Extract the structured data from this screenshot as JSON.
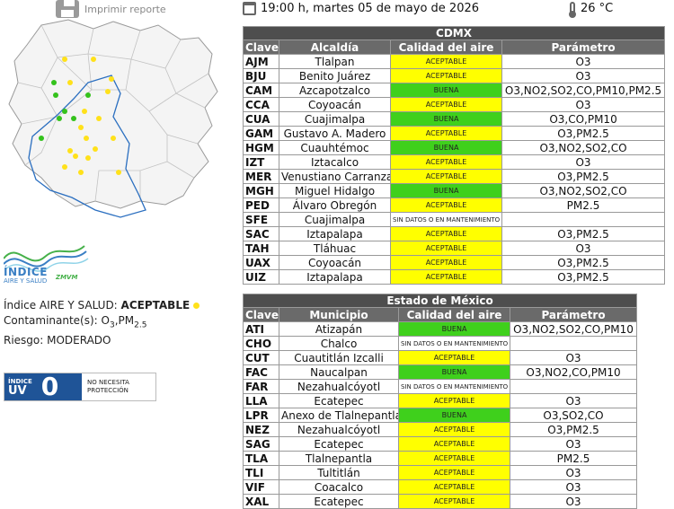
{
  "header": {
    "print_label": "Imprimir reporte",
    "datetime": "19:00 h, martes 05 de mayo de 2026",
    "temperature": "26 °C"
  },
  "logo": {
    "title": "ÍNDICE",
    "subtitle": "AIRE Y SALUD",
    "region": "ZMVM"
  },
  "info": {
    "index_label": "Índice AIRE Y SALUD: ",
    "index_value": "ACEPTABLE",
    "pollutant_label": "Contaminante(s): ",
    "pollutant_o": "O",
    "pollutant_o_sub": "3",
    "pollutant_pm": ",PM",
    "pollutant_pm_sub": "2.5",
    "risk_label": "Riesgo: ",
    "risk_value": "MODERADO",
    "status_color": "#ffe11a"
  },
  "uv": {
    "small_label": "ÍNDICE",
    "big_label": "UV",
    "value": "0",
    "message_line1": "NO NECESITA",
    "message_line2": "PROTECCIÓN"
  },
  "colors": {
    "aceptable": "#ffff00",
    "buena": "#3fd01c",
    "header_dark": "#4e4e4e",
    "header_mid": "#6a6a6a",
    "uv_blue": "#1f5497"
  },
  "cdmx": {
    "title": "CDMX",
    "headers": [
      "Clave",
      "Alcaldía",
      "Calidad del aire",
      "Parámetro"
    ],
    "rows": [
      {
        "clave": "AJM",
        "name": "Tlalpan",
        "quality": "ACEPTABLE",
        "status": "aceptable",
        "param": "O3"
      },
      {
        "clave": "BJU",
        "name": "Benito Juárez",
        "quality": "ACEPTABLE",
        "status": "aceptable",
        "param": "O3"
      },
      {
        "clave": "CAM",
        "name": "Azcapotzalco",
        "quality": "BUENA",
        "status": "buena",
        "param": "O3,NO2,SO2,CO,PM10,PM2.5"
      },
      {
        "clave": "CCA",
        "name": "Coyoacán",
        "quality": "ACEPTABLE",
        "status": "aceptable",
        "param": "O3"
      },
      {
        "clave": "CUA",
        "name": "Cuajimalpa",
        "quality": "BUENA",
        "status": "buena",
        "param": "O3,CO,PM10"
      },
      {
        "clave": "GAM",
        "name": "Gustavo A. Madero",
        "quality": "ACEPTABLE",
        "status": "aceptable",
        "param": "O3,PM2.5"
      },
      {
        "clave": "HGM",
        "name": "Cuauhtémoc",
        "quality": "BUENA",
        "status": "buena",
        "param": "O3,NO2,SO2,CO"
      },
      {
        "clave": "IZT",
        "name": "Iztacalco",
        "quality": "ACEPTABLE",
        "status": "aceptable",
        "param": "O3"
      },
      {
        "clave": "MER",
        "name": "Venustiano Carranza",
        "quality": "ACEPTABLE",
        "status": "aceptable",
        "param": "O3,PM2.5"
      },
      {
        "clave": "MGH",
        "name": "Miguel Hidalgo",
        "quality": "BUENA",
        "status": "buena",
        "param": "O3,NO2,SO2,CO"
      },
      {
        "clave": "PED",
        "name": "Álvaro Obregón",
        "quality": "ACEPTABLE",
        "status": "aceptable",
        "param": "PM2.5"
      },
      {
        "clave": "SFE",
        "name": "Cuajimalpa",
        "quality": "SIN DATOS O EN MANTENIMIENTO",
        "status": "sin",
        "param": ""
      },
      {
        "clave": "SAC",
        "name": "Iztapalapa",
        "quality": "ACEPTABLE",
        "status": "aceptable",
        "param": "O3,PM2.5"
      },
      {
        "clave": "TAH",
        "name": "Tláhuac",
        "quality": "ACEPTABLE",
        "status": "aceptable",
        "param": "O3"
      },
      {
        "clave": "UAX",
        "name": "Coyoacán",
        "quality": "ACEPTABLE",
        "status": "aceptable",
        "param": "O3,PM2.5"
      },
      {
        "clave": "UIZ",
        "name": "Iztapalapa",
        "quality": "ACEPTABLE",
        "status": "aceptable",
        "param": "O3,PM2.5"
      }
    ]
  },
  "edomex": {
    "title": "Estado de México",
    "headers": [
      "Clave",
      "Municipio",
      "Calidad del aire",
      "Parámetro"
    ],
    "rows": [
      {
        "clave": "ATI",
        "name": "Atizapán",
        "quality": "BUENA",
        "status": "buena",
        "param": "O3,NO2,SO2,CO,PM10"
      },
      {
        "clave": "CHO",
        "name": "Chalco",
        "quality": "SIN DATOS O EN MANTENIMIENTO",
        "status": "sin",
        "param": ""
      },
      {
        "clave": "CUT",
        "name": "Cuautitlán Izcalli",
        "quality": "ACEPTABLE",
        "status": "aceptable",
        "param": "O3"
      },
      {
        "clave": "FAC",
        "name": "Naucalpan",
        "quality": "BUENA",
        "status": "buena",
        "param": "O3,NO2,CO,PM10"
      },
      {
        "clave": "FAR",
        "name": "Nezahualcóyotl",
        "quality": "SIN DATOS O EN MANTENIMIENTO",
        "status": "sin",
        "param": ""
      },
      {
        "clave": "LLA",
        "name": "Ecatepec",
        "quality": "ACEPTABLE",
        "status": "aceptable",
        "param": "O3"
      },
      {
        "clave": "LPR",
        "name": "Anexo de Tlalnepantla",
        "quality": "BUENA",
        "status": "buena",
        "param": "O3,SO2,CO"
      },
      {
        "clave": "NEZ",
        "name": "Nezahualcóyotl",
        "quality": "ACEPTABLE",
        "status": "aceptable",
        "param": "O3,PM2.5"
      },
      {
        "clave": "SAG",
        "name": "Ecatepec",
        "quality": "ACEPTABLE",
        "status": "aceptable",
        "param": "O3"
      },
      {
        "clave": "TLA",
        "name": "Tlalnepantla",
        "quality": "ACEPTABLE",
        "status": "aceptable",
        "param": "PM2.5"
      },
      {
        "clave": "TLI",
        "name": "Tultitlán",
        "quality": "ACEPTABLE",
        "status": "aceptable",
        "param": "O3"
      },
      {
        "clave": "VIF",
        "name": "Coacalco",
        "quality": "ACEPTABLE",
        "status": "aceptable",
        "param": "O3"
      },
      {
        "clave": "XAL",
        "name": "Ecatepec",
        "quality": "ACEPTABLE",
        "status": "aceptable",
        "param": "O3"
      }
    ]
  }
}
